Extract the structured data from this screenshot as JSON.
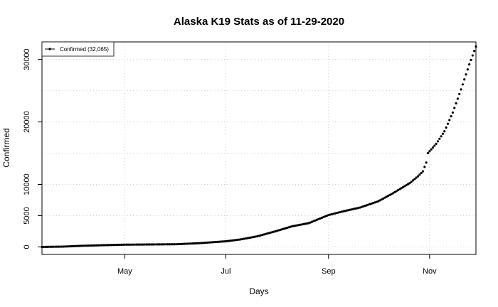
{
  "chart_data": {
    "type": "scatter",
    "title": "Alaska K19 Stats as of 11-29-2020",
    "xlabel": "Days",
    "ylabel": "Confirmed",
    "x_range": [
      "2020-03-12",
      "2020-11-29"
    ],
    "ylim": [
      -1200,
      32800
    ],
    "x_ticks": [
      {
        "date": "2020-05-01",
        "label": "May"
      },
      {
        "date": "2020-07-01",
        "label": "Jul"
      },
      {
        "date": "2020-09-01",
        "label": "Sep"
      },
      {
        "date": "2020-11-01",
        "label": "Nov"
      }
    ],
    "y_ticks": [
      0,
      5000,
      10000,
      20000,
      30000
    ],
    "y_tick_labels": [
      "0",
      "5000",
      "10000",
      "20000",
      "30000"
    ],
    "grid": true,
    "legend_position": "top-left",
    "marker_color": "#000000",
    "series": [
      {
        "name": "Confirmed (32,065)",
        "points": [
          [
            "2020-03-12",
            0
          ],
          [
            "2020-03-25",
            50
          ],
          [
            "2020-04-05",
            180
          ],
          [
            "2020-04-20",
            290
          ],
          [
            "2020-05-01",
            360
          ],
          [
            "2020-05-15",
            390
          ],
          [
            "2020-06-01",
            430
          ],
          [
            "2020-06-15",
            600
          ],
          [
            "2020-07-01",
            900
          ],
          [
            "2020-07-10",
            1200
          ],
          [
            "2020-07-20",
            1700
          ],
          [
            "2020-07-31",
            2500
          ],
          [
            "2020-08-10",
            3300
          ],
          [
            "2020-08-20",
            3800
          ],
          [
            "2020-09-01",
            5100
          ],
          [
            "2020-09-10",
            5700
          ],
          [
            "2020-09-20",
            6300
          ],
          [
            "2020-10-01",
            7300
          ],
          [
            "2020-10-10",
            8600
          ],
          [
            "2020-10-20",
            10200
          ],
          [
            "2020-10-25",
            11300
          ],
          [
            "2020-10-28",
            12100
          ],
          [
            "2020-10-30",
            13500
          ],
          [
            "2020-10-31",
            15000
          ],
          [
            "2020-11-05",
            16500
          ],
          [
            "2020-11-10",
            18500
          ],
          [
            "2020-11-15",
            21500
          ],
          [
            "2020-11-20",
            25200
          ],
          [
            "2020-11-25",
            29200
          ],
          [
            "2020-11-29",
            32065
          ]
        ]
      }
    ]
  }
}
